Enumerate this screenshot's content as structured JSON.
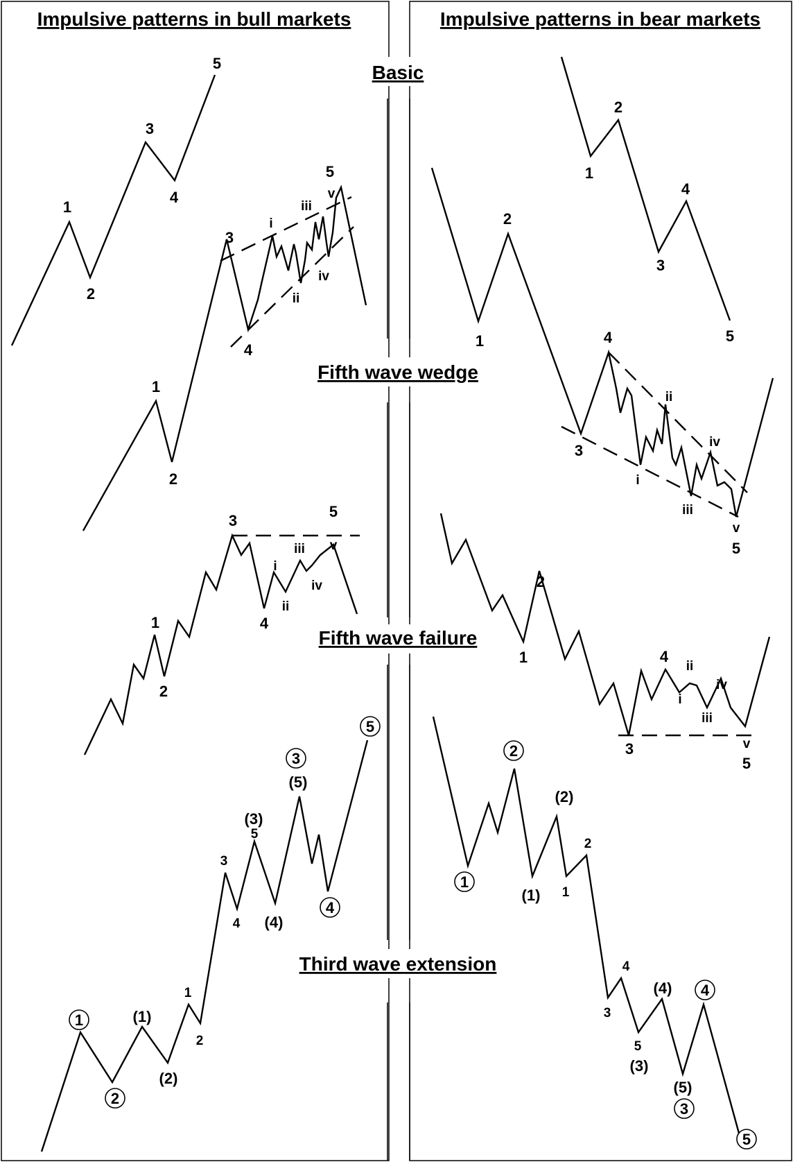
{
  "headers": {
    "bull": "Impulsive patterns in bull markets",
    "bear": "Impulsive patterns in bear markets"
  },
  "sections": {
    "basic": "Basic",
    "wedge": "Fifth wave wedge",
    "failure": "Fifth wave failure",
    "extension": "Third wave extension"
  },
  "labels": {
    "bull_basic": [
      "1",
      "2",
      "3",
      "4",
      "5"
    ],
    "bull_wedge": [
      "1",
      "2",
      "3",
      "4",
      "5",
      "i",
      "ii",
      "iii",
      "iv",
      "v"
    ],
    "bull_failure": [
      "1",
      "2",
      "3",
      "4",
      "5",
      "i",
      "ii",
      "iii",
      "iv",
      "v"
    ],
    "bull_extension": {
      "circled": [
        "1",
        "2",
        "3",
        "4",
        "5"
      ],
      "paren": [
        "(1)",
        "(2)",
        "(3)",
        "(4)",
        "(5)"
      ],
      "plain": [
        "1",
        "2",
        "3",
        "4",
        "5"
      ]
    },
    "bear_basic": [
      "1",
      "2",
      "3",
      "4",
      "5"
    ],
    "bear_wedge": [
      "1",
      "2",
      "3",
      "4",
      "5",
      "i",
      "ii",
      "iii",
      "iv",
      "v"
    ],
    "bear_failure": [
      "1",
      "2",
      "3",
      "4",
      "5",
      "i",
      "ii",
      "iii",
      "iv",
      "v"
    ],
    "bear_extension": {
      "circled": [
        "1",
        "2",
        "3",
        "4",
        "5"
      ],
      "paren": [
        "(1)",
        "(2)",
        "(3)",
        "(4)",
        "(5)"
      ],
      "plain": [
        "1",
        "2",
        "3",
        "4",
        "5"
      ]
    }
  }
}
